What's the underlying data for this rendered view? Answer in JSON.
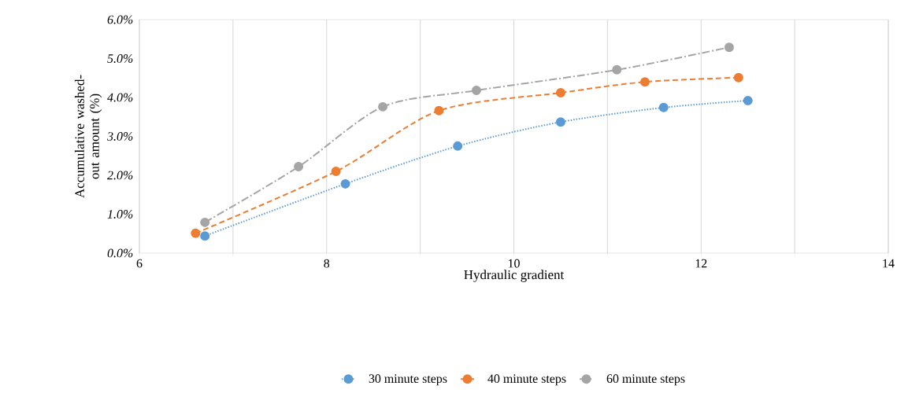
{
  "chart_data": {
    "type": "line",
    "xlabel": "Hydraulic gradient",
    "ylabel": "Accumulative washed-out amount (%)",
    "series": [
      {
        "name": "30 minute steps",
        "color": "#5b9bd5",
        "line_style": "dotted",
        "x": [
          6.7,
          8.2,
          9.4,
          10.5,
          11.6,
          12.5
        ],
        "values": [
          0.44,
          1.78,
          2.75,
          3.37,
          3.74,
          3.92
        ]
      },
      {
        "name": "40 minute steps",
        "color": "#ed7d31",
        "line_style": "dashed",
        "x": [
          6.6,
          8.1,
          9.2,
          10.5,
          11.4,
          12.4
        ],
        "values": [
          0.51,
          2.1,
          3.66,
          4.12,
          4.4,
          4.51
        ]
      },
      {
        "name": "60 minute steps",
        "color": "#a5a5a5",
        "line_style": "dashdot",
        "x": [
          6.7,
          7.7,
          8.6,
          9.6,
          11.1,
          12.3
        ],
        "values": [
          0.79,
          2.22,
          3.76,
          4.18,
          4.71,
          5.29
        ]
      }
    ],
    "xlim": [
      6,
      14
    ],
    "ylim": [
      0,
      6
    ],
    "xticks": [
      6,
      {
        "value": 7,
        "label": null
      },
      8,
      {
        "value": 9,
        "label": null
      },
      10,
      {
        "value": 11,
        "label": null
      },
      12,
      {
        "value": 13,
        "label": null
      },
      14
    ],
    "yticks": [
      {
        "value": 0,
        "label": "0.0%"
      },
      {
        "value": 1,
        "label": "1.0%"
      },
      {
        "value": 2,
        "label": "2.0%"
      },
      {
        "value": 3,
        "label": "3.0%"
      },
      {
        "value": 4,
        "label": "4.0%"
      },
      {
        "value": 5,
        "label": "5.0%"
      },
      {
        "value": 6,
        "label": "6.0%"
      }
    ],
    "grid": "x",
    "legend": "bottom",
    "marker": "circle"
  }
}
